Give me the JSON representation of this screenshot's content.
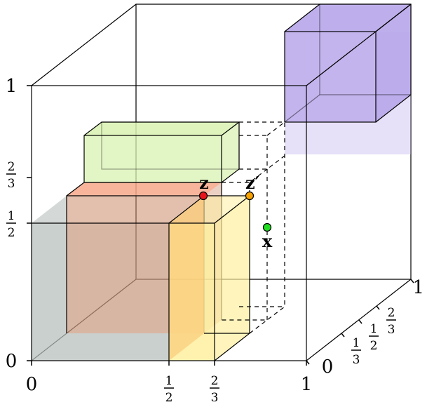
{
  "axis_x": {
    "ticks": [
      {
        "label": "0"
      },
      {
        "num": "1",
        "den": "2"
      },
      {
        "num": "2",
        "den": "3"
      },
      {
        "label": "1"
      }
    ]
  },
  "axis_y": {
    "ticks": [
      {
        "label": "0"
      },
      {
        "num": "1",
        "den": "2"
      },
      {
        "num": "2",
        "den": "3"
      },
      {
        "label": "1"
      }
    ]
  },
  "axis_z": {
    "ticks": [
      {
        "label": "0"
      },
      {
        "num": "1",
        "den": "3"
      },
      {
        "num": "1",
        "den": "2"
      },
      {
        "num": "2",
        "den": "3"
      },
      {
        "label": "1"
      }
    ]
  },
  "points": {
    "z": {
      "label": "z",
      "color": "#e8141c"
    },
    "z_prime": {
      "label": "z′",
      "color": "#f5a100"
    },
    "x": {
      "label": "x",
      "color": "#22dd22"
    }
  },
  "colors": {
    "gray_box": "#b8bfbc",
    "brown_box": "#cc8c6c",
    "yellow_box": "#fff0a0",
    "green_box": "#d8f2b0",
    "purple_box": "#b7a6ea",
    "orange_face": "#f7a88a"
  }
}
